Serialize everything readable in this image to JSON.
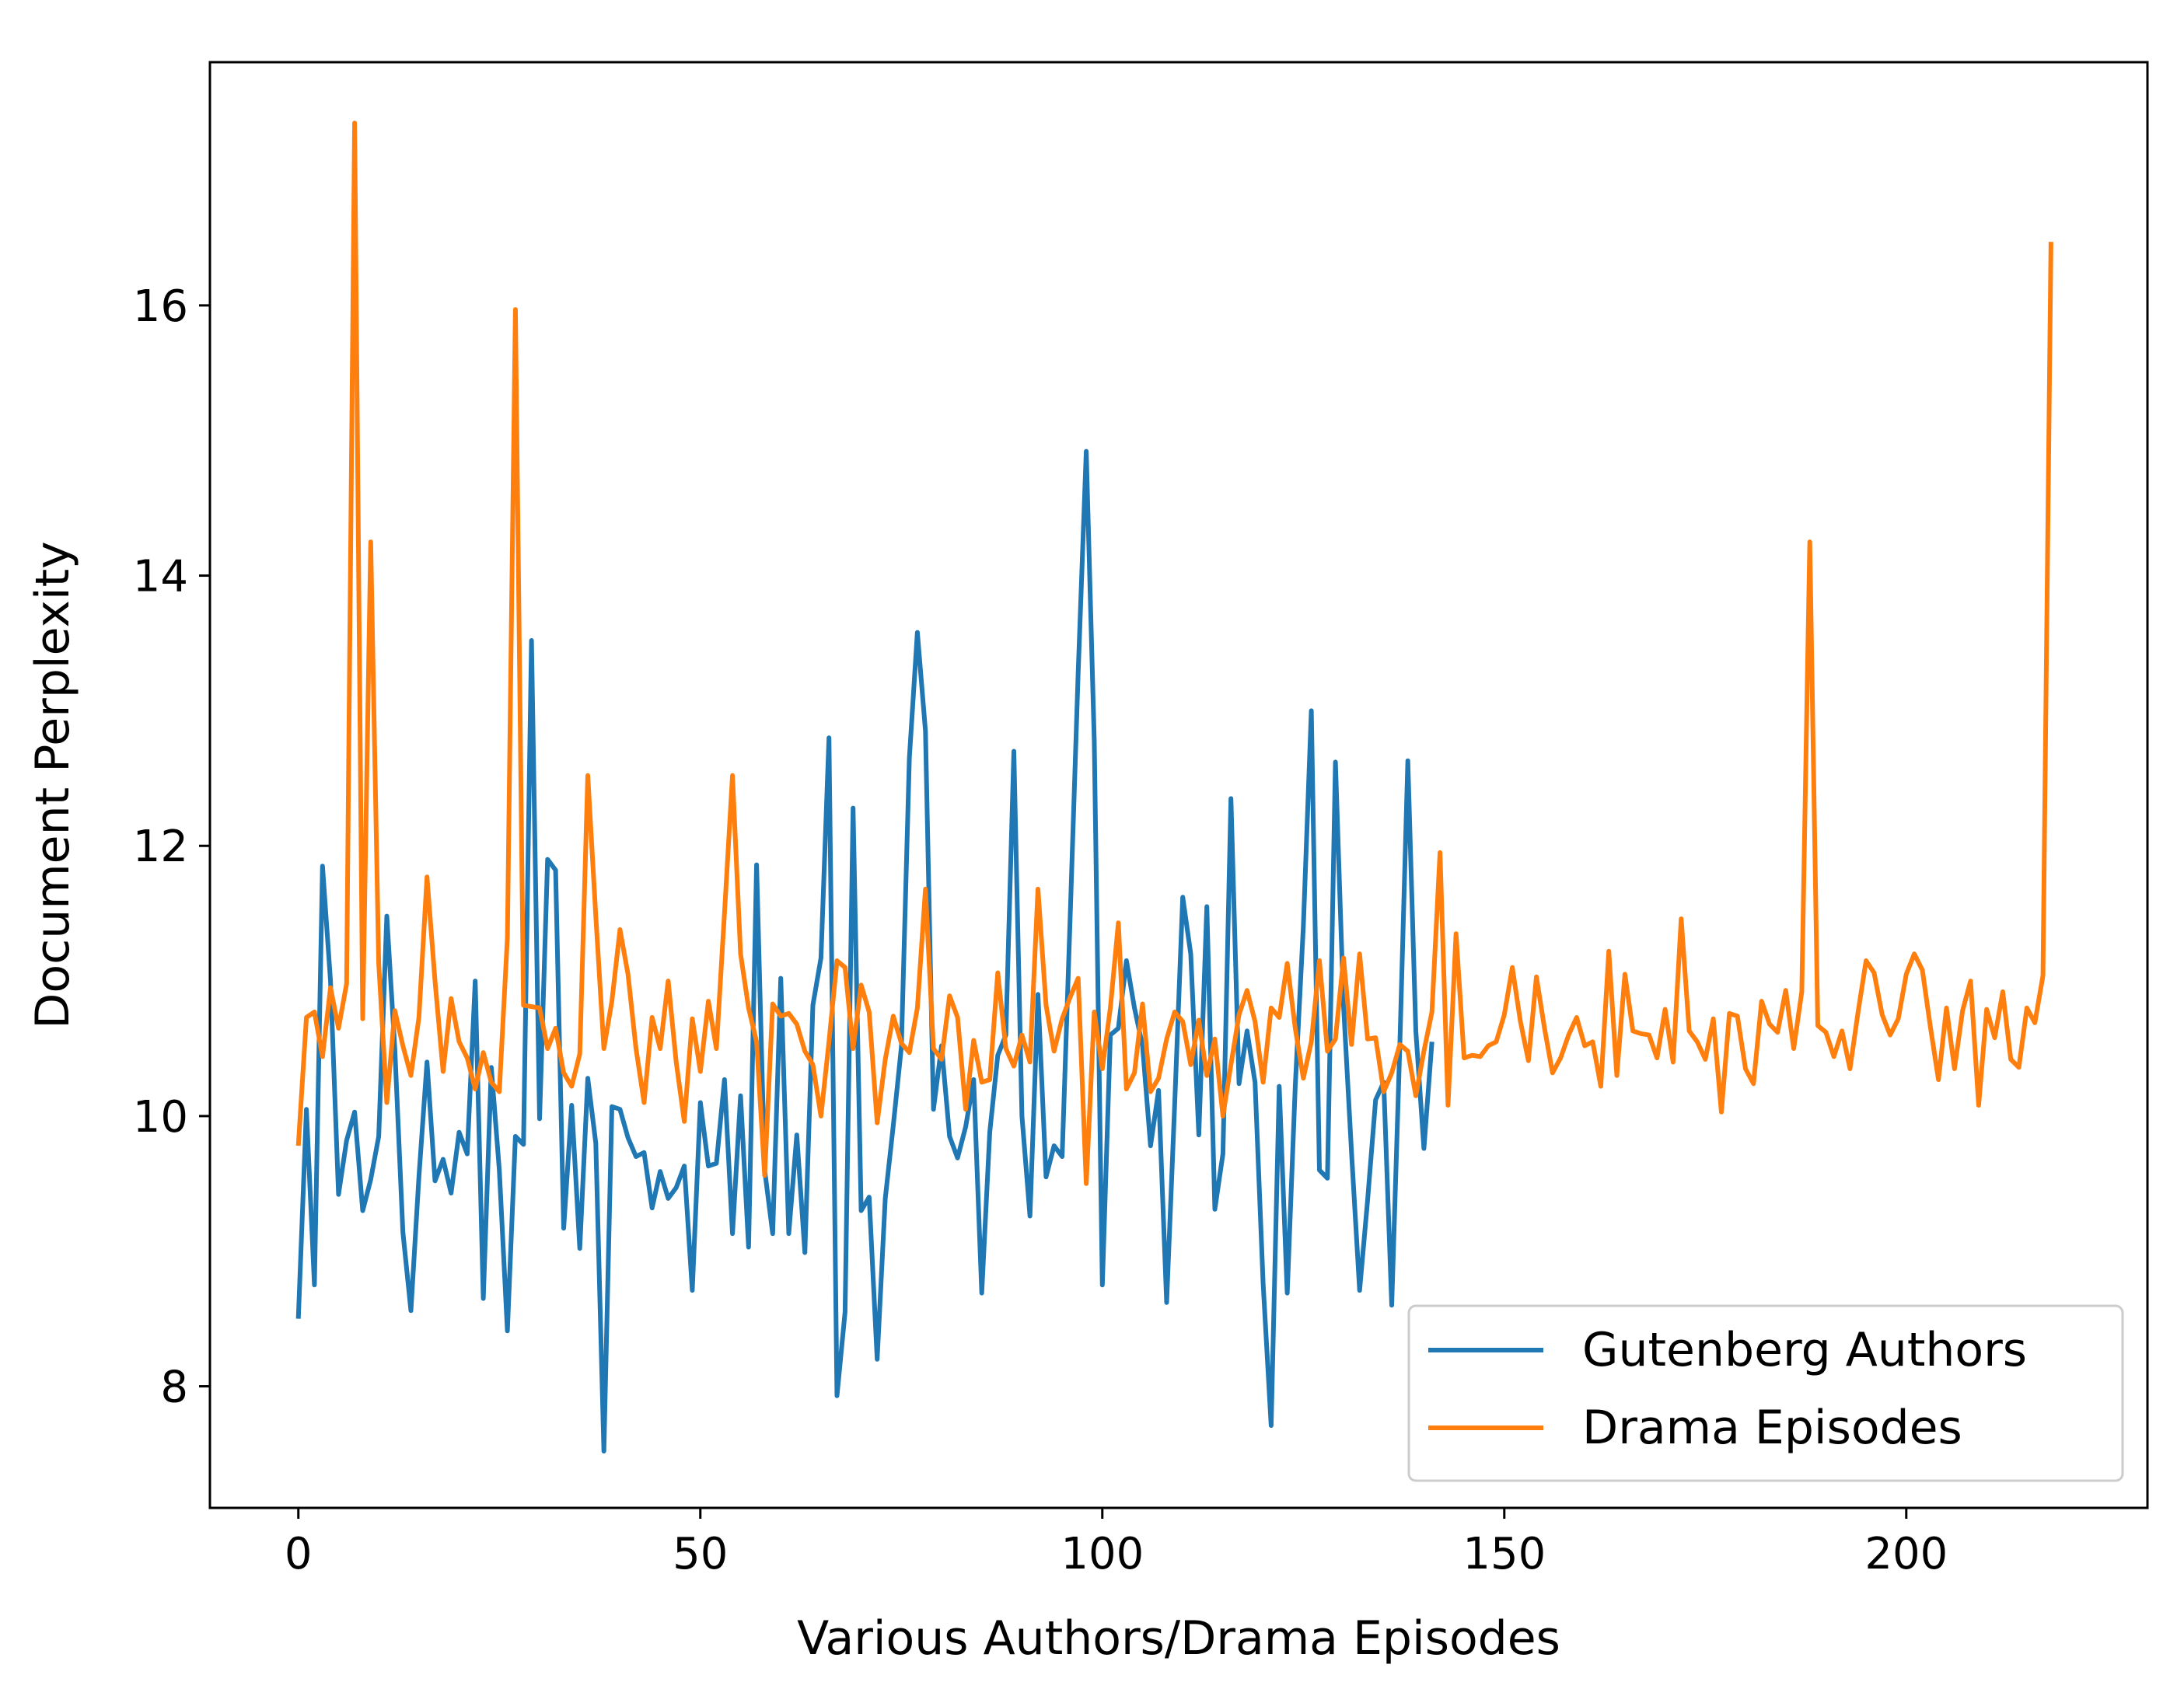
{
  "chart_data": {
    "type": "line",
    "title": "",
    "xlabel": "Various Authors/Drama Episodes",
    "ylabel": "Document Perplexity",
    "xlim": [
      -11,
      230
    ],
    "ylim": [
      7.1,
      17.8
    ],
    "xticks": [
      0,
      50,
      100,
      150,
      200
    ],
    "yticks": [
      8,
      10,
      12,
      14,
      16
    ],
    "grid": false,
    "legend_position": "lower-right",
    "series": [
      {
        "name": "Gutenberg Authors",
        "color": "#1f77b4",
        "values": [
          8.5,
          10.05,
          8.75,
          11.85,
          11.0,
          9.42,
          9.82,
          10.03,
          9.3,
          9.53,
          9.85,
          11.48,
          10.5,
          9.14,
          8.56,
          9.55,
          10.4,
          9.52,
          9.68,
          9.43,
          9.88,
          9.72,
          11.0,
          8.65,
          10.36,
          9.6,
          8.41,
          9.85,
          9.79,
          13.52,
          9.98,
          11.9,
          11.82,
          9.17,
          10.08,
          9.02,
          10.28,
          9.8,
          7.52,
          10.07,
          10.05,
          9.84,
          9.7,
          9.73,
          9.32,
          9.59,
          9.39,
          9.47,
          9.63,
          8.71,
          10.1,
          9.63,
          9.65,
          10.27,
          9.13,
          10.15,
          9.03,
          11.86,
          9.6,
          9.13,
          11.02,
          9.13,
          9.86,
          8.99,
          10.82,
          11.17,
          12.8,
          7.93,
          8.55,
          12.28,
          9.3,
          9.4,
          8.2,
          9.39,
          9.93,
          10.51,
          12.65,
          13.58,
          12.85,
          10.05,
          10.52,
          9.85,
          9.69,
          9.92,
          10.27,
          8.69,
          9.88,
          10.45,
          10.6,
          12.7,
          10.0,
          9.26,
          10.9,
          9.55,
          9.78,
          9.7,
          11.47,
          13.28,
          14.92,
          12.78,
          8.75,
          10.6,
          10.65,
          11.15,
          10.8,
          10.52,
          9.78,
          10.19,
          8.62,
          10.08,
          11.62,
          11.2,
          9.86,
          11.55,
          9.31,
          9.72,
          12.35,
          10.24,
          10.63,
          10.25,
          8.76,
          7.71,
          10.22,
          8.69,
          10.22,
          11.4,
          13.0,
          9.6,
          9.54,
          12.62,
          10.82,
          9.73,
          8.71,
          9.38,
          10.12,
          10.25,
          8.6,
          10.52,
          12.63,
          10.63,
          9.76,
          10.55
        ]
      },
      {
        "name": "Drama Episodes",
        "color": "#ff7f0e",
        "values": [
          9.78,
          10.73,
          10.77,
          10.44,
          10.95,
          10.65,
          10.98,
          17.35,
          10.72,
          14.25,
          11.13,
          10.1,
          10.78,
          10.52,
          10.3,
          10.73,
          11.77,
          11.0,
          10.33,
          10.87,
          10.55,
          10.43,
          10.2,
          10.47,
          10.25,
          10.18,
          11.32,
          15.97,
          10.82,
          10.81,
          10.8,
          10.5,
          10.65,
          10.32,
          10.22,
          10.46,
          12.52,
          11.48,
          10.5,
          10.85,
          11.38,
          11.05,
          10.5,
          10.1,
          10.73,
          10.5,
          11.0,
          10.4,
          9.96,
          10.72,
          10.33,
          10.85,
          10.5,
          11.5,
          12.52,
          11.2,
          10.8,
          10.55,
          9.56,
          10.83,
          10.74,
          10.76,
          10.68,
          10.48,
          10.38,
          10.0,
          10.55,
          11.15,
          11.1,
          10.5,
          10.97,
          10.77,
          9.95,
          10.42,
          10.74,
          10.54,
          10.47,
          10.8,
          11.68,
          10.5,
          10.42,
          10.89,
          10.73,
          10.05,
          10.56,
          10.25,
          10.27,
          11.06,
          10.5,
          10.37,
          10.6,
          10.4,
          11.68,
          10.82,
          10.48,
          10.72,
          10.88,
          11.02,
          9.5,
          10.77,
          10.35,
          10.8,
          11.43,
          10.2,
          10.32,
          10.83,
          10.18,
          10.28,
          10.57,
          10.77,
          10.7,
          10.38,
          10.71,
          10.3,
          10.57,
          10.0,
          10.38,
          10.75,
          10.93,
          10.7,
          10.25,
          10.8,
          10.73,
          11.13,
          10.65,
          10.28,
          10.55,
          11.15,
          10.48,
          10.57,
          11.17,
          10.53,
          11.2,
          10.57,
          10.58,
          10.18,
          10.32,
          10.53,
          10.48,
          10.15,
          10.48,
          10.77,
          11.95,
          10.08,
          11.35,
          10.43,
          10.45,
          10.44,
          10.52,
          10.55,
          10.75,
          11.1,
          10.7,
          10.41,
          11.03,
          10.65,
          10.32,
          10.43,
          10.6,
          10.73,
          10.52,
          10.55,
          10.22,
          11.22,
          10.3,
          11.05,
          10.63,
          10.61,
          10.6,
          10.43,
          10.79,
          10.4,
          11.46,
          10.63,
          10.55,
          10.42,
          10.72,
          10.03,
          10.76,
          10.74,
          10.35,
          10.24,
          10.85,
          10.68,
          10.62,
          10.93,
          10.5,
          10.92,
          14.25,
          10.67,
          10.62,
          10.44,
          10.63,
          10.35,
          10.77,
          11.15,
          11.06,
          10.75,
          10.6,
          10.72,
          11.05,
          11.2,
          11.08,
          10.66,
          10.27,
          10.8,
          10.35,
          10.78,
          11.0,
          10.08,
          10.79,
          10.58,
          10.92,
          10.42,
          10.36,
          10.8,
          10.69,
          11.04,
          16.47
        ]
      }
    ]
  }
}
